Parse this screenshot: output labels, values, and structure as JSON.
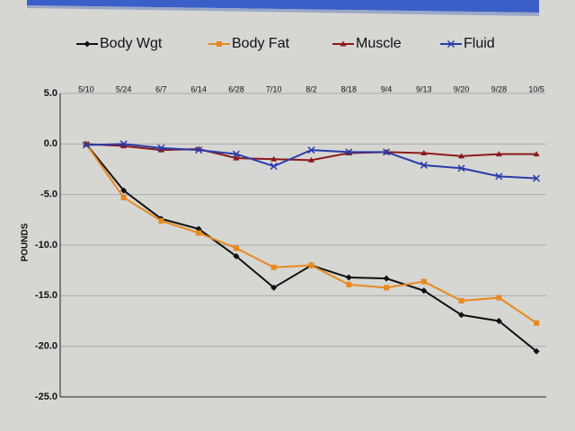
{
  "chart_data": {
    "type": "line",
    "y_label": "POUNDS",
    "categories": [
      "5/10",
      "5/24",
      "6/7",
      "6/14",
      "6/28",
      "7/10",
      "8/2",
      "8/18",
      "9/4",
      "9/13",
      "9/20",
      "9/28",
      "10/5"
    ],
    "series": [
      {
        "name": "Body Wgt",
        "color": "#111111",
        "marker": "diamond",
        "values": [
          0,
          -4.6,
          -7.4,
          -8.4,
          -11.1,
          -14.2,
          -12.0,
          -13.2,
          -13.3,
          -14.5,
          -16.9,
          -17.5,
          -20.5
        ]
      },
      {
        "name": "Body Fat",
        "color": "#e8891e",
        "marker": "square",
        "values": [
          0,
          -5.3,
          -7.6,
          -8.8,
          -10.3,
          -12.2,
          -12.0,
          -13.9,
          -14.2,
          -13.6,
          -15.5,
          -15.2,
          -17.7
        ]
      },
      {
        "name": "Muscle",
        "color": "#8b1a1a",
        "marker": "triangle",
        "values": [
          0,
          -0.2,
          -0.6,
          -0.5,
          -1.4,
          -1.5,
          -1.6,
          -0.9,
          -0.8,
          -0.9,
          -1.2,
          -1.0,
          -1.0
        ]
      },
      {
        "name": "Fluid",
        "color": "#2a3aa8",
        "marker": "x",
        "values": [
          -0.1,
          0.0,
          -0.4,
          -0.6,
          -1.0,
          -2.2,
          -0.6,
          -0.8,
          -0.8,
          -2.1,
          -2.4,
          -3.2,
          -3.4
        ]
      }
    ],
    "ylim": [
      -25,
      5
    ],
    "yticks": [
      {
        "value": 5,
        "label": "5.0"
      },
      {
        "value": 0,
        "label": "0.0"
      },
      {
        "value": -5,
        "label": "-5.0"
      },
      {
        "value": -10,
        "label": "-10.0"
      },
      {
        "value": -15,
        "label": "-15.0"
      },
      {
        "value": -20,
        "label": "-20.0"
      },
      {
        "value": -25,
        "label": "-25.0"
      }
    ],
    "grid": true
  }
}
